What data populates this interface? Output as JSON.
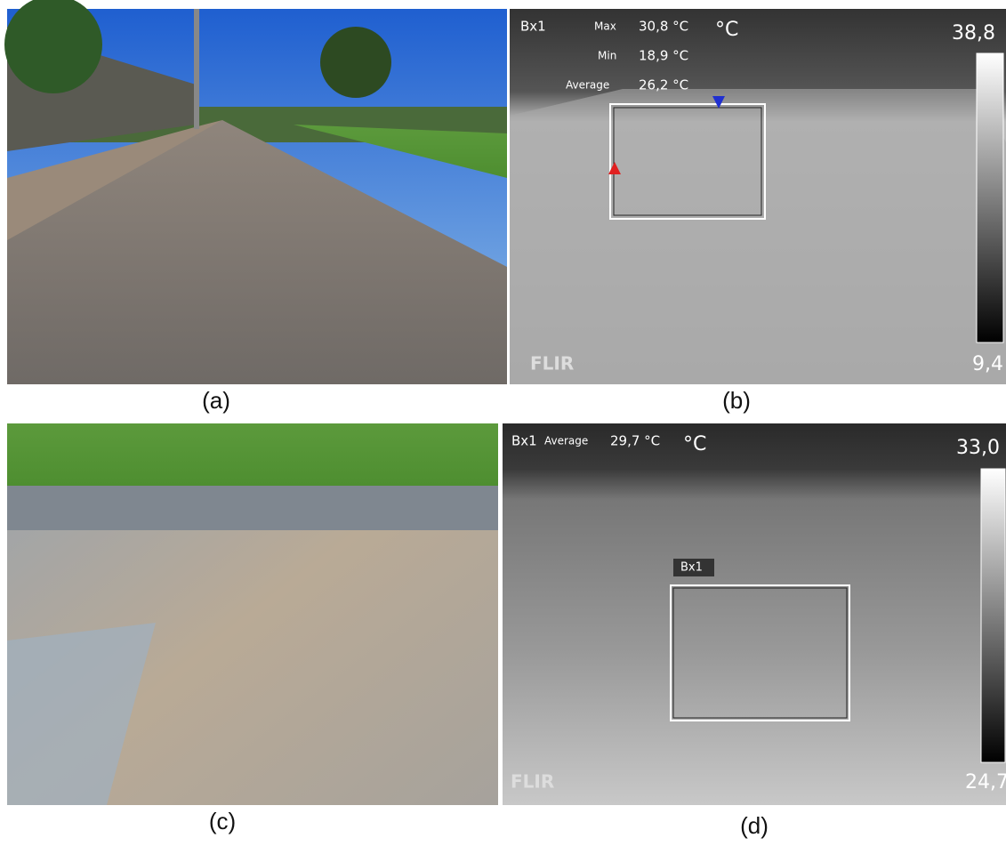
{
  "panels": [
    {
      "caption": "(a)"
    },
    {
      "caption": "(b)",
      "overlay": {
        "box": "Bx1",
        "max_label": "Max",
        "max": "30,8 °C",
        "unit": "°C",
        "scale_max": "38,8",
        "min_label": "Min",
        "min": "18,9 °C",
        "avg_label": "Average",
        "avg": "26,2 °C",
        "scale_min": "9,4",
        "brand": "FLIR"
      }
    },
    {
      "caption": "(c)"
    },
    {
      "caption": "(d)",
      "overlay": {
        "box": "Bx1",
        "avg_label": "Average",
        "avg": "29,7 °C",
        "unit": "°C",
        "scale_max": "33,0",
        "box_tag": "Bx1",
        "scale_min": "24,7",
        "brand": "FLIR"
      }
    }
  ]
}
